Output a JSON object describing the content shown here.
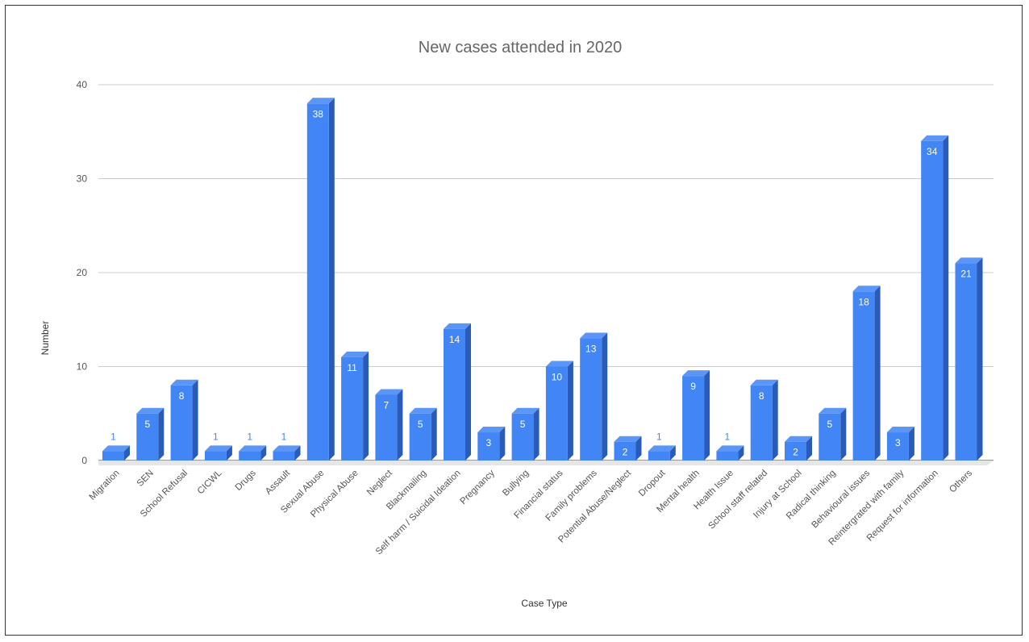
{
  "chart_data": {
    "type": "bar",
    "title": "New cases attended in 2020",
    "xlabel": "Case Type",
    "ylabel": "Number",
    "ylim": [
      0,
      40
    ],
    "yticks": [
      0,
      10,
      20,
      30,
      40
    ],
    "grid": true,
    "bar_color": "#4285f4",
    "bar_side_color": "#2a5bb8",
    "bar_top_color": "#5b95f6",
    "categories": [
      "Migration",
      "SEN",
      "School Refusal",
      "CICWL",
      "Drugs",
      "Assault",
      "Sexual Abuse",
      "Physical Abuse",
      "Neglect",
      "Blackmailing",
      "Self harm / Suicidal Ideation",
      "Pregnancy",
      "Bullying",
      "Financial status",
      "Family problems",
      "Potential Abuse/Neglect",
      "Dropout",
      "Mental health",
      "Health Issue",
      "School staff related",
      "Injury at School",
      "Radical thinking",
      "Behavioural issues",
      "Reintergrated with family",
      "Request for information",
      "Others"
    ],
    "values": [
      1,
      5,
      8,
      1,
      1,
      1,
      38,
      11,
      7,
      5,
      14,
      3,
      5,
      10,
      13,
      2,
      1,
      9,
      1,
      8,
      2,
      5,
      18,
      3,
      34,
      21
    ]
  }
}
